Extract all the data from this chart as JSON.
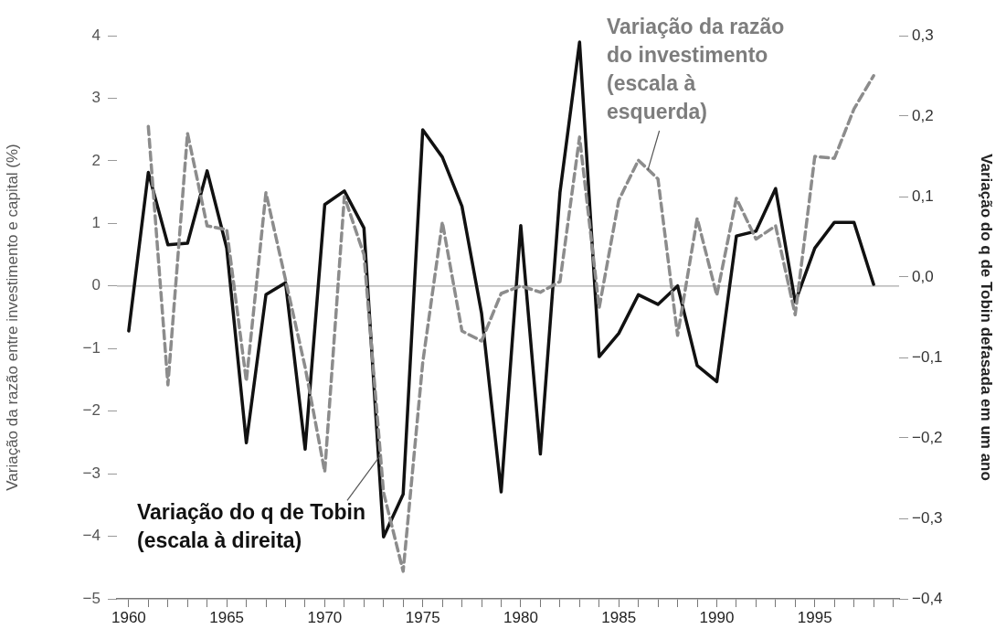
{
  "chart_data": {
    "type": "line",
    "x": [
      1960,
      1961,
      1962,
      1963,
      1964,
      1965,
      1966,
      1967,
      1968,
      1969,
      1970,
      1971,
      1972,
      1973,
      1974,
      1975,
      1976,
      1977,
      1978,
      1979,
      1980,
      1981,
      1982,
      1983,
      1984,
      1985,
      1986,
      1987,
      1988,
      1989,
      1990,
      1991,
      1992,
      1993,
      1994,
      1995,
      1996,
      1997,
      1998
    ],
    "series": [
      {
        "color": "#8c8c8c",
        "line_style": "dashed",
        "values": [
          null,
          2.55,
          -1.58,
          2.44,
          0.96,
          0.9,
          -1.52,
          1.49,
          0.1,
          -1.3,
          -2.97,
          1.43,
          0.5,
          -3.3,
          -4.56,
          -1.22,
          1.02,
          -0.72,
          -0.88,
          -0.12,
          0,
          -0.1,
          0.07,
          2.38,
          -0.35,
          1.37,
          2.01,
          1.71,
          -0.79,
          1.08,
          -0.15,
          1.4,
          0.75,
          0.96,
          -0.46,
          2.07,
          2.04,
          2.83,
          3.36
        ]
      },
      {
        "color": "#111111",
        "line_style": "solid",
        "axis": "y2",
        "values": [
          -0.067,
          0.13,
          0.04,
          0.042,
          0.132,
          0.036,
          -0.206,
          -0.022,
          -0.007,
          -0.214,
          0.09,
          0.107,
          0.061,
          -0.323,
          -0.27,
          0.183,
          0.149,
          0.088,
          -0.045,
          -0.267,
          0.064,
          -0.22,
          0.105,
          0.292,
          -0.099,
          -0.07,
          -0.022,
          -0.034,
          -0.011,
          -0.11,
          -0.13,
          0.051,
          0.057,
          0.11,
          -0.031,
          0.036,
          0.068,
          0.068,
          -0.009
        ]
      }
    ],
    "marker": "none",
    "grid": false,
    "xlim": [
      1959.4,
      1999.3
    ],
    "xticks": [
      1960,
      {
        "value": 1961,
        "label": null
      },
      {
        "value": 1962,
        "label": null
      },
      {
        "value": 1963,
        "label": null
      },
      {
        "value": 1964,
        "label": null
      },
      1965,
      {
        "value": 1966,
        "label": null
      },
      {
        "value": 1967,
        "label": null
      },
      {
        "value": 1968,
        "label": null
      },
      {
        "value": 1969,
        "label": null
      },
      1970,
      {
        "value": 1971,
        "label": null
      },
      {
        "value": 1972,
        "label": null
      },
      {
        "value": 1973,
        "label": null
      },
      {
        "value": 1974,
        "label": null
      },
      1975,
      {
        "value": 1976,
        "label": null
      },
      {
        "value": 1977,
        "label": null
      },
      {
        "value": 1978,
        "label": null
      },
      {
        "value": 1979,
        "label": null
      },
      1980,
      {
        "value": 1981,
        "label": null
      },
      {
        "value": 1982,
        "label": null
      },
      {
        "value": 1983,
        "label": null
      },
      {
        "value": 1984,
        "label": null
      },
      1985,
      {
        "value": 1986,
        "label": null
      },
      {
        "value": 1987,
        "label": null
      },
      {
        "value": 1988,
        "label": null
      },
      {
        "value": 1989,
        "label": null
      },
      1990,
      {
        "value": 1991,
        "label": null
      },
      {
        "value": 1992,
        "label": null
      },
      {
        "value": 1993,
        "label": null
      },
      {
        "value": 1994,
        "label": null
      },
      1995,
      {
        "value": 1996,
        "label": null
      },
      {
        "value": 1997,
        "label": null
      },
      {
        "value": 1998,
        "label": null
      },
      {
        "value": 1999,
        "label": null
      }
    ],
    "ylim": [
      -5,
      4
    ],
    "yticks": [
      {
        "value": -5,
        "label": "−5"
      },
      {
        "value": -4,
        "label": "−4"
      },
      {
        "value": -3,
        "label": "−3"
      },
      {
        "value": -2,
        "label": "−2"
      },
      {
        "value": -1,
        "label": "−1"
      },
      0,
      1,
      2,
      3,
      4
    ],
    "y2lim": [
      -0.4,
      0.3
    ],
    "y2ticks": [
      {
        "value": -0.4,
        "label": "−0,4"
      },
      {
        "value": -0.3,
        "label": "−0,3"
      },
      {
        "value": -0.2,
        "label": "−0,2"
      },
      {
        "value": -0.1,
        "label": "−0,1"
      },
      {
        "value": 0,
        "label": "0,0"
      },
      {
        "value": 0.1,
        "label": "0,1"
      },
      {
        "value": 0.2,
        "label": "0,2"
      },
      {
        "value": 0.3,
        "label": "0,3"
      }
    ],
    "ylabel": "Variação da razão entre investimento e capital (%)",
    "y2label": "Variação do q de Tobin defasada em um ano",
    "ref_lines": [
      {
        "axis": "y",
        "value": 0,
        "color": "#aaaaaa"
      }
    ],
    "annotations": [
      {
        "text": "Variação da razão do investimento (escala à esquerda)",
        "x": 1986.5,
        "y": 1.85
      },
      {
        "text": "Variação do q de Tobin (escala à direita)",
        "x": 1972.84,
        "y": -2.7
      }
    ]
  }
}
